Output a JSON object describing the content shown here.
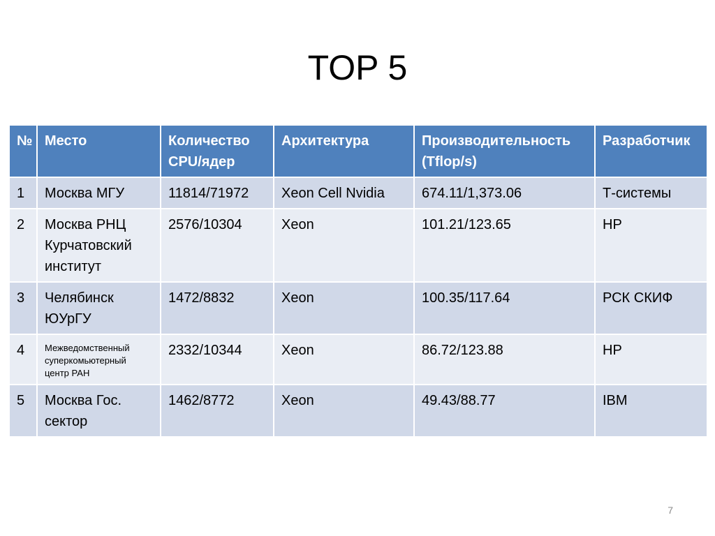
{
  "title": "TOP 5",
  "table": {
    "headers": [
      "№",
      "Место",
      "Количество CPU/ядер",
      "Архитектура",
      "Производительность (Tflop/s)",
      "Разработчик"
    ],
    "rows": [
      [
        "1",
        "Москва МГУ",
        "11814/71972",
        "Xeon Cell Nvidia",
        "674.11/1,373.06",
        "Т-системы"
      ],
      [
        "2",
        "Москва  РНЦ Курчатовский институт",
        "2576/10304",
        "Xeon",
        "101.21/123.65",
        "HP"
      ],
      [
        "3",
        "Челябинск  ЮУрГУ",
        "1472/8832",
        "Xeon",
        "100.35/117.64",
        "РСК СКИФ"
      ],
      [
        "4",
        "Межведомственный суперкомьютерный центр РАН",
        "2332/10344",
        "Xeon",
        "86.72/123.88",
        "HP"
      ],
      [
        "5",
        "Москва Гос. сектор",
        "1462/8772",
        "Xeon",
        "49.43/88.77",
        "IBM"
      ]
    ]
  },
  "page_number": "7"
}
